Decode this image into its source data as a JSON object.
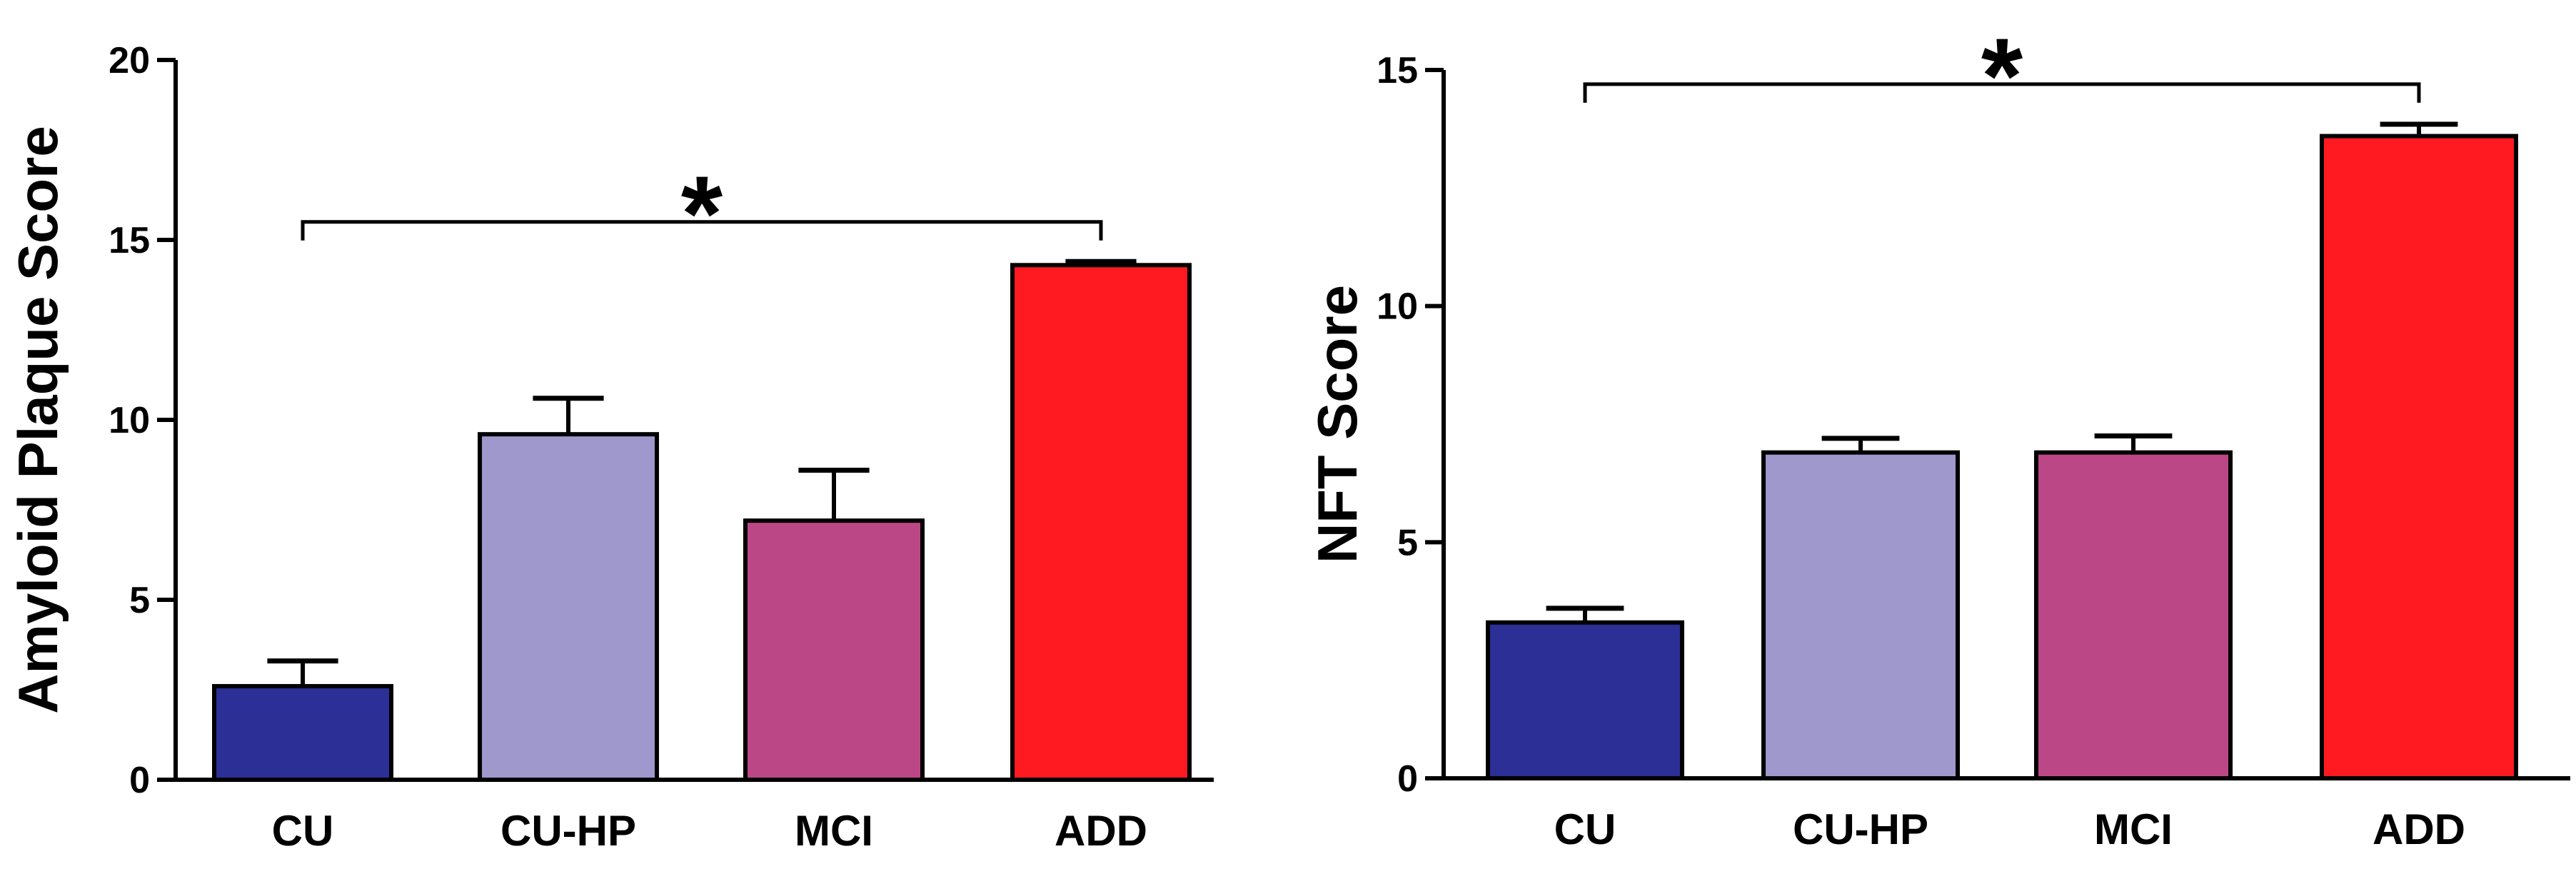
{
  "chart_data": [
    {
      "type": "bar",
      "categories": [
        "CU",
        "CU-HP",
        "MCI",
        "ADD"
      ],
      "values": [
        2.6,
        9.6,
        7.2,
        14.3
      ],
      "errors": [
        0.7,
        1.0,
        1.4,
        0.1
      ],
      "colors": [
        "#2B2F96",
        "#9E98CC",
        "#BC4786",
        "#FF1A22"
      ],
      "xlabel": "",
      "ylabel": "Amyloid Plaque Score",
      "ylim": [
        0,
        20
      ],
      "yticks": [
        0,
        5,
        10,
        15,
        20
      ],
      "significance": {
        "from": "CU",
        "to": "ADD",
        "label": "*",
        "level": 15.5
      },
      "grid": false
    },
    {
      "type": "bar",
      "categories": [
        "CU",
        "CU-HP",
        "MCI",
        "ADD"
      ],
      "values": [
        3.3,
        6.9,
        6.9,
        13.6
      ],
      "errors": [
        0.3,
        0.3,
        0.35,
        0.25
      ],
      "colors": [
        "#2B2F96",
        "#9E98CC",
        "#BC4786",
        "#FF1A22"
      ],
      "xlabel": "",
      "ylabel": "NFT  Score",
      "ylim": [
        0,
        15
      ],
      "yticks": [
        0,
        5,
        10,
        15
      ],
      "significance": {
        "from": "CU",
        "to": "ADD",
        "label": "*",
        "level": 14.7
      },
      "grid": false
    }
  ]
}
